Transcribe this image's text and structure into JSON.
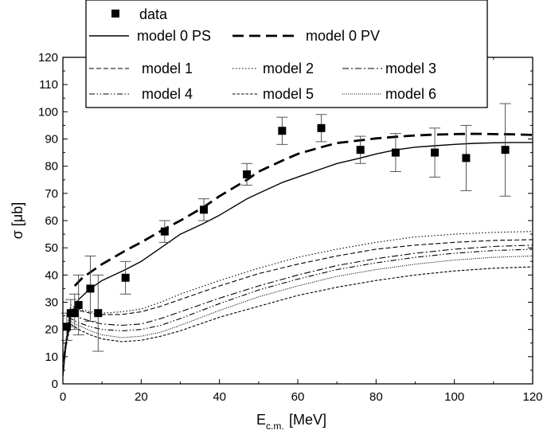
{
  "chart_data": {
    "type": "line",
    "xlabel_main": "E",
    "xlabel_sub": "c.m.",
    "xlabel_unit": "[MeV]",
    "ylabel": "σ [μb]",
    "xlim": [
      0,
      120
    ],
    "ylim": [
      0,
      120
    ],
    "x_ticks": [
      0,
      20,
      40,
      60,
      80,
      100,
      120
    ],
    "y_ticks": [
      0,
      10,
      20,
      30,
      40,
      50,
      60,
      70,
      80,
      90,
      100,
      110,
      120
    ],
    "grid": false,
    "legend_position": "top",
    "data_points": {
      "name": "data",
      "x": [
        1,
        2,
        3,
        4,
        7,
        9,
        16,
        26,
        36,
        47,
        56,
        66,
        76,
        85,
        95,
        103,
        113
      ],
      "y": [
        21,
        26,
        26,
        29,
        35,
        26,
        39,
        56,
        64,
        77,
        93,
        94,
        86,
        85,
        85,
        83,
        86
      ],
      "err_low": [
        5,
        5,
        6,
        11,
        12,
        14,
        6,
        4,
        4,
        4,
        5,
        5,
        5,
        7,
        9,
        12,
        17
      ],
      "err_high": [
        5,
        5,
        7,
        11,
        12,
        14,
        6,
        4,
        4,
        4,
        5,
        5,
        5,
        7,
        9,
        12,
        17
      ]
    },
    "series": [
      {
        "name": "model 0  PS",
        "style": "solid",
        "width": 1.4,
        "x": [
          0,
          1,
          2,
          4,
          7,
          10,
          16,
          20,
          26,
          30,
          36,
          40,
          47,
          50,
          56,
          60,
          66,
          70,
          76,
          80,
          85,
          90,
          95,
          100,
          105,
          110,
          115,
          120
        ],
        "y": [
          3,
          17,
          25,
          31,
          35,
          38,
          42,
          45,
          51,
          55,
          59,
          62,
          68,
          70,
          74,
          76,
          79,
          81,
          83,
          84.5,
          86,
          87,
          87.5,
          88,
          88.4,
          88.6,
          88.7,
          88.7
        ]
      },
      {
        "name": "model 0 PV",
        "style": "dashed-bold",
        "width": 2.8,
        "x": [
          3,
          5,
          8,
          10,
          16,
          20,
          26,
          30,
          36,
          40,
          47,
          50,
          56,
          60,
          66,
          70,
          76,
          80,
          85,
          90,
          95,
          100,
          105,
          110,
          115,
          120
        ],
        "y": [
          36,
          39,
          42,
          44,
          49,
          52,
          57,
          60,
          65,
          69,
          75,
          78,
          82,
          84.5,
          87,
          88.5,
          89.5,
          90.2,
          90.8,
          91.3,
          91.6,
          91.8,
          91.9,
          91.8,
          91.7,
          91.5
        ]
      },
      {
        "name": "model 1",
        "style": "dash",
        "width": 1.1,
        "x": [
          0,
          2,
          4,
          7,
          10,
          15,
          20,
          25,
          30,
          40,
          50,
          60,
          70,
          80,
          90,
          100,
          110,
          120
        ],
        "y": [
          8,
          28,
          27,
          26,
          25.5,
          25.5,
          26.5,
          28.5,
          31,
          36,
          40.5,
          44,
          47,
          49.5,
          51,
          52,
          52.7,
          53
        ]
      },
      {
        "name": "model 2",
        "style": "dot",
        "width": 1.1,
        "x": [
          0,
          2,
          4,
          7,
          10,
          15,
          20,
          25,
          30,
          40,
          50,
          60,
          70,
          80,
          90,
          100,
          110,
          120
        ],
        "y": [
          8,
          29,
          27.5,
          26.5,
          26,
          26.5,
          27.5,
          30,
          33,
          38,
          42.5,
          46.5,
          49.5,
          52,
          54,
          55,
          55.7,
          56
        ]
      },
      {
        "name": "model 3",
        "style": "dashdot",
        "width": 1.1,
        "x": [
          0,
          2,
          4,
          7,
          10,
          15,
          20,
          25,
          30,
          40,
          50,
          60,
          70,
          80,
          90,
          100,
          110,
          120
        ],
        "y": [
          8,
          26,
          24.5,
          23,
          22,
          21.5,
          22,
          24,
          26.5,
          31.5,
          36,
          40,
          43.5,
          46,
          48,
          49.5,
          50.5,
          51
        ]
      },
      {
        "name": "model 4",
        "style": "dashdotdot",
        "width": 1.1,
        "x": [
          0,
          2,
          4,
          7,
          10,
          15,
          20,
          25,
          30,
          40,
          50,
          60,
          70,
          80,
          90,
          100,
          110,
          120
        ],
        "y": [
          8,
          24,
          22.5,
          21,
          20,
          19.5,
          20,
          21.5,
          24,
          29.5,
          34.5,
          38.5,
          42,
          44.5,
          46.5,
          48,
          49,
          49.5
        ]
      },
      {
        "name": "model 5",
        "style": "shortdash",
        "width": 1.1,
        "x": [
          0,
          2,
          4,
          7,
          10,
          15,
          20,
          25,
          30,
          40,
          50,
          60,
          70,
          80,
          90,
          100,
          110,
          120
        ],
        "y": [
          8,
          22,
          20,
          18,
          16.5,
          15.5,
          16,
          17.5,
          19.5,
          24.5,
          28.5,
          32.5,
          35.5,
          38,
          40,
          41.5,
          42.5,
          43
        ]
      },
      {
        "name": "model 6",
        "style": "finedot",
        "width": 1.1,
        "x": [
          0,
          2,
          4,
          7,
          10,
          15,
          20,
          25,
          30,
          40,
          50,
          60,
          70,
          80,
          90,
          100,
          110,
          120
        ],
        "y": [
          8,
          23,
          21.5,
          19.5,
          18,
          17,
          17.5,
          19,
          21.5,
          27,
          32,
          36,
          39.5,
          42,
          44,
          45.5,
          46.5,
          47
        ]
      }
    ]
  }
}
